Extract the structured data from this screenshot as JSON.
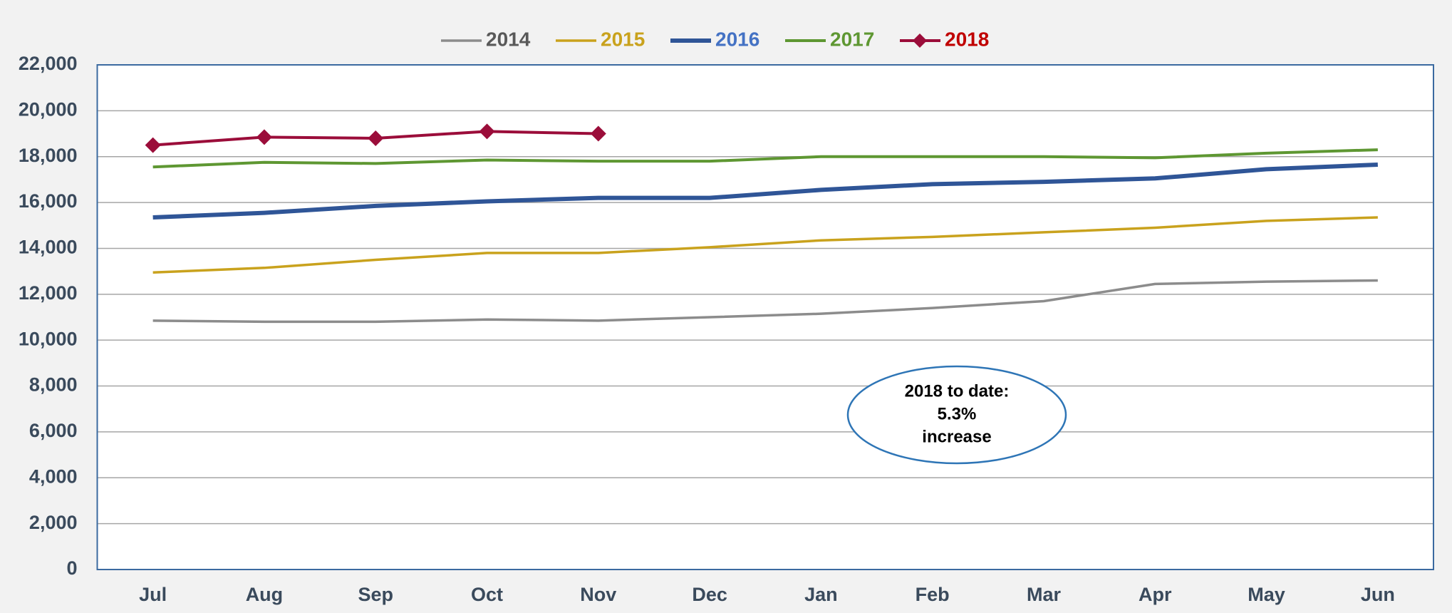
{
  "chart_data": {
    "type": "line",
    "categories": [
      "Jul",
      "Aug",
      "Sep",
      "Oct",
      "Nov",
      "Dec",
      "Jan",
      "Feb",
      "Mar",
      "Apr",
      "May",
      "Jun"
    ],
    "series": [
      {
        "name": "2014",
        "color": "#8c8c8c",
        "label_color": "#595959",
        "values": [
          10850,
          10800,
          10800,
          10900,
          10850,
          11000,
          11150,
          11400,
          11700,
          12450,
          12550,
          12600
        ]
      },
      {
        "name": "2015",
        "color": "#c9a21d",
        "label_color": "#c9a21d",
        "values": [
          12950,
          13150,
          13500,
          13800,
          13800,
          14050,
          14350,
          14500,
          14700,
          14900,
          15200,
          15350
        ]
      },
      {
        "name": "2016",
        "color": "#2f5597",
        "label_color": "#4472c4",
        "values": [
          15350,
          15550,
          15850,
          16050,
          16200,
          16200,
          16550,
          16800,
          16900,
          17050,
          17450,
          17650
        ]
      },
      {
        "name": "2017",
        "color": "#5e9732",
        "label_color": "#5e9732",
        "values": [
          17550,
          17750,
          17700,
          17850,
          17800,
          17800,
          18000,
          18000,
          18000,
          17950,
          18150,
          18300
        ]
      },
      {
        "name": "2018",
        "color": "#9b0d3a",
        "label_color": "#c00000",
        "marker": "diamond",
        "values": [
          18500,
          18850,
          18800,
          19100,
          19000,
          null,
          null,
          null,
          null,
          null,
          null,
          null
        ]
      }
    ],
    "ylim": [
      0,
      22000
    ],
    "yticks": [
      0,
      {
        "value": 2000,
        "label": "2,000"
      },
      {
        "value": 4000,
        "label": "4,000"
      },
      {
        "value": 6000,
        "label": "6,000"
      },
      {
        "value": 8000,
        "label": "8,000"
      },
      {
        "value": 10000,
        "label": "10,000"
      },
      {
        "value": 12000,
        "label": "12,000"
      },
      {
        "value": 14000,
        "label": "14,000"
      },
      {
        "value": 16000,
        "label": "16,000"
      },
      {
        "value": 18000,
        "label": "18,000"
      },
      {
        "value": 20000,
        "label": "20,000"
      },
      {
        "value": 22000,
        "label": "22,000"
      }
    ],
    "grid": true,
    "legend": "top",
    "annotation": {
      "lines": [
        "2018 to date:",
        "5.3%",
        "increase"
      ]
    }
  }
}
